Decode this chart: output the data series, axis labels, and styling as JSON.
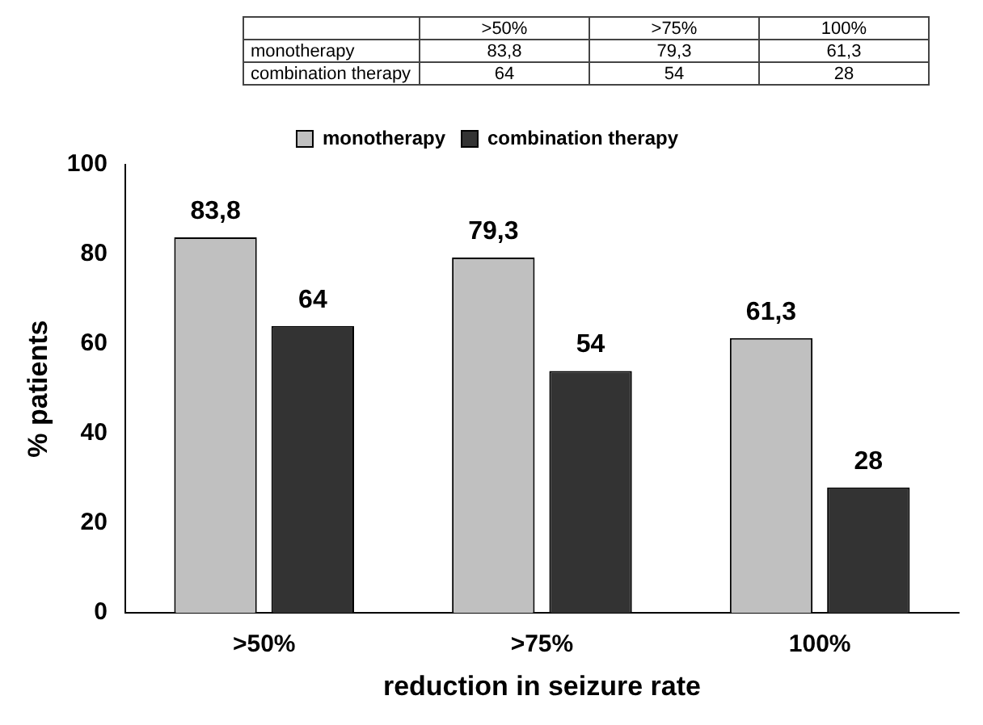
{
  "chart_data": {
    "type": "bar",
    "xlabel": "reduction in seizure rate",
    "ylabel": "% patients",
    "categories": [
      ">50%",
      ">75%",
      "100%"
    ],
    "series": [
      {
        "name": "monotherapy",
        "color": "#c0c0c0",
        "values": [
          83.8,
          79.3,
          61.3
        ],
        "value_labels": [
          "83,8",
          "79,3",
          "61,3"
        ]
      },
      {
        "name": "combination therapy",
        "color": "#333333",
        "values": [
          64,
          54,
          28
        ],
        "value_labels": [
          "64",
          "54",
          "28"
        ]
      }
    ],
    "ylim": [
      0,
      100
    ],
    "yticks": [
      0,
      20,
      40,
      60,
      80,
      100
    ],
    "grid": false,
    "legend": "top"
  }
}
